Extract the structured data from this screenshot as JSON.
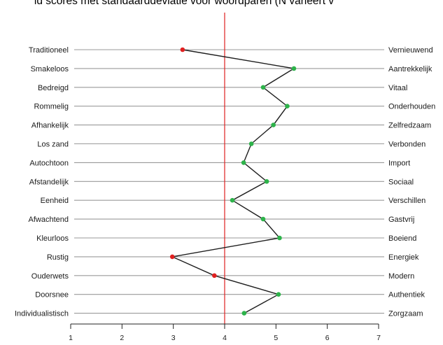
{
  "chart_data": {
    "type": "line",
    "title": "ld scores met standaarddeviatie voor woordparen (N variëert v",
    "xlim": [
      1,
      7
    ],
    "x_ticks": [
      "1",
      "2",
      "3",
      "4",
      "5",
      "6",
      "7"
    ],
    "reference_line_x": 4,
    "grid": "horizontal rows per word pair",
    "colors": {
      "above_neutral": "#2db34a",
      "below_neutral": "#e02020",
      "reference": "#e02020",
      "line": "#1e1e1e"
    },
    "pairs": [
      {
        "left": "Traditioneel",
        "right": "Vernieuwend",
        "value": 3.18
      },
      {
        "left": "Smakeloos",
        "right": "Aantrekkelijk",
        "value": 5.35
      },
      {
        "left": "Bedreigd",
        "right": "Vitaal",
        "value": 4.75
      },
      {
        "left": "Rommelig",
        "right": "Onderhouden",
        "value": 5.22
      },
      {
        "left": "Afhankelijk",
        "right": "Zelfredzaam",
        "value": 4.95
      },
      {
        "left": "Los zand",
        "right": "Verbonden",
        "value": 4.52
      },
      {
        "left": "Autochtoon",
        "right": "Import",
        "value": 4.37
      },
      {
        "left": "Afstandelijk",
        "right": "Sociaal",
        "value": 4.82
      },
      {
        "left": "Eenheid",
        "right": "Verschillen",
        "value": 4.15
      },
      {
        "left": "Afwachtend",
        "right": "Gastvrij",
        "value": 4.75
      },
      {
        "left": "Kleurloos",
        "right": "Boeiend",
        "value": 5.07
      },
      {
        "left": "Rustig",
        "right": "Energiek",
        "value": 2.98
      },
      {
        "left": "Ouderwets",
        "right": "Modern",
        "value": 3.8
      },
      {
        "left": "Doorsnee",
        "right": "Authentiek",
        "value": 5.05
      },
      {
        "left": "Individualistisch",
        "right": "Zorgzaam",
        "value": 4.38
      }
    ]
  }
}
